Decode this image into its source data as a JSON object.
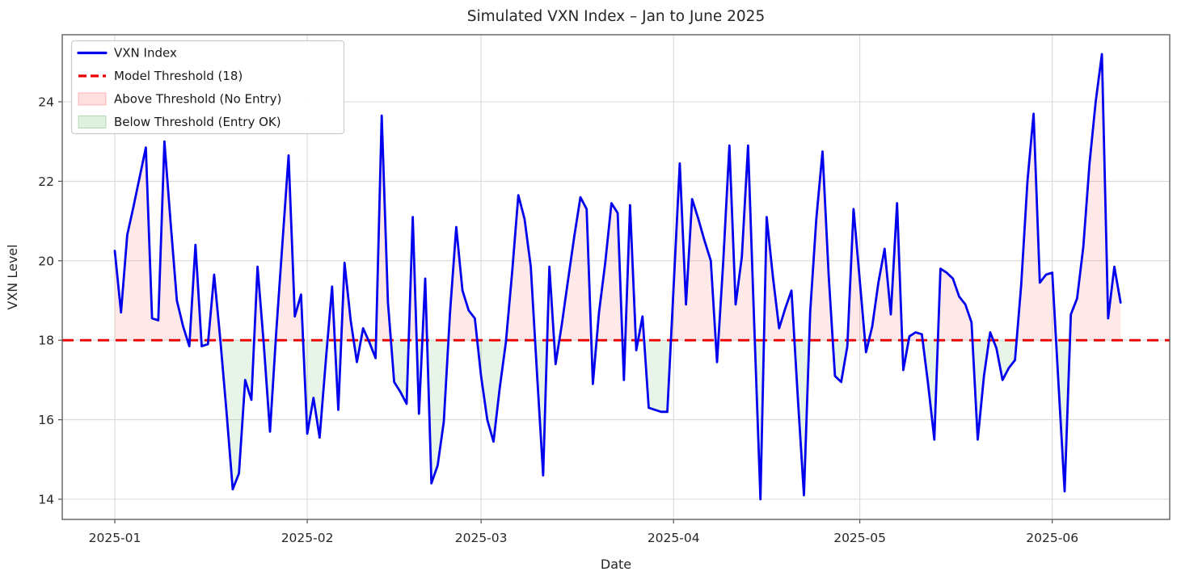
{
  "chart_data": {
    "type": "line",
    "title": "Simulated VXN Index – Jan to June 2025",
    "xlabel": "Date",
    "ylabel": "VXN Level",
    "threshold": 18,
    "ylim": [
      13.49,
      25.76
    ],
    "grid": true,
    "legend_position": "upper-left",
    "legend": [
      {
        "label": "VXN Index",
        "type": "line",
        "color": "#0000ee"
      },
      {
        "label": "Model Threshold (18)",
        "type": "dashed-line",
        "color": "#ee0000"
      },
      {
        "label": "Above Threshold (No Entry)",
        "type": "patch",
        "color": "#ff0000"
      },
      {
        "label": "Below Threshold (Entry OK)",
        "type": "patch",
        "color": "#008000"
      }
    ],
    "y_ticks": [
      14,
      16,
      18,
      20,
      22,
      24
    ],
    "x_ticks": [
      {
        "label": "2025-01",
        "date": "2025-01-01"
      },
      {
        "label": "2025-02",
        "date": "2025-02-01"
      },
      {
        "label": "2025-03",
        "date": "2025-03-01"
      },
      {
        "label": "2025-04",
        "date": "2025-04-01"
      },
      {
        "label": "2025-05",
        "date": "2025-05-01"
      },
      {
        "label": "2025-06",
        "date": "2025-06-01"
      }
    ],
    "series_name": "VXN Index",
    "dates": [
      "2025-01-01",
      "2025-01-02",
      "2025-01-03",
      "2025-01-04",
      "2025-01-05",
      "2025-01-06",
      "2025-01-07",
      "2025-01-08",
      "2025-01-09",
      "2025-01-10",
      "2025-01-11",
      "2025-01-12",
      "2025-01-13",
      "2025-01-14",
      "2025-01-15",
      "2025-01-16",
      "2025-01-17",
      "2025-01-18",
      "2025-01-19",
      "2025-01-20",
      "2025-01-21",
      "2025-01-22",
      "2025-01-23",
      "2025-01-24",
      "2025-01-25",
      "2025-01-26",
      "2025-01-27",
      "2025-01-28",
      "2025-01-29",
      "2025-01-30",
      "2025-01-31",
      "2025-02-01",
      "2025-02-02",
      "2025-02-03",
      "2025-02-04",
      "2025-02-05",
      "2025-02-06",
      "2025-02-07",
      "2025-02-08",
      "2025-02-09",
      "2025-02-10",
      "2025-02-11",
      "2025-02-12",
      "2025-02-13",
      "2025-02-14",
      "2025-02-15",
      "2025-02-16",
      "2025-02-17",
      "2025-02-18",
      "2025-02-19",
      "2025-02-20",
      "2025-02-21",
      "2025-02-22",
      "2025-02-23",
      "2025-02-24",
      "2025-02-25",
      "2025-02-26",
      "2025-02-27",
      "2025-02-28",
      "2025-03-01",
      "2025-03-02",
      "2025-03-03",
      "2025-03-04",
      "2025-03-05",
      "2025-03-06",
      "2025-03-07",
      "2025-03-08",
      "2025-03-09",
      "2025-03-10",
      "2025-03-11",
      "2025-03-12",
      "2025-03-13",
      "2025-03-14",
      "2025-03-15",
      "2025-03-16",
      "2025-03-17",
      "2025-03-18",
      "2025-03-19",
      "2025-03-20",
      "2025-03-21",
      "2025-03-22",
      "2025-03-23",
      "2025-03-24",
      "2025-03-25",
      "2025-03-26",
      "2025-03-27",
      "2025-03-28",
      "2025-03-29",
      "2025-03-30",
      "2025-03-31",
      "2025-04-01",
      "2025-04-02",
      "2025-04-03",
      "2025-04-04",
      "2025-04-05",
      "2025-04-06",
      "2025-04-07",
      "2025-04-08",
      "2025-04-09",
      "2025-04-10",
      "2025-04-11",
      "2025-04-12",
      "2025-04-13",
      "2025-04-14",
      "2025-04-15",
      "2025-04-16",
      "2025-04-17",
      "2025-04-18",
      "2025-04-19",
      "2025-04-20",
      "2025-04-21",
      "2025-04-22",
      "2025-04-23",
      "2025-04-24",
      "2025-04-25",
      "2025-04-26",
      "2025-04-27",
      "2025-04-28",
      "2025-04-29",
      "2025-04-30",
      "2025-05-01",
      "2025-05-02",
      "2025-05-03",
      "2025-05-04",
      "2025-05-05",
      "2025-05-06",
      "2025-05-07",
      "2025-05-08",
      "2025-05-09",
      "2025-05-10",
      "2025-05-11",
      "2025-05-12",
      "2025-05-13",
      "2025-05-14",
      "2025-05-15",
      "2025-05-16",
      "2025-05-17",
      "2025-05-18",
      "2025-05-19",
      "2025-05-20",
      "2025-05-21",
      "2025-05-22",
      "2025-05-23",
      "2025-05-24",
      "2025-05-25",
      "2025-05-26",
      "2025-05-27",
      "2025-05-28",
      "2025-05-29",
      "2025-05-30",
      "2025-05-31",
      "2025-06-01",
      "2025-06-02",
      "2025-06-03",
      "2025-06-04",
      "2025-06-05",
      "2025-06-06",
      "2025-06-07",
      "2025-06-08",
      "2025-06-09",
      "2025-06-10",
      "2025-06-11",
      "2025-06-12"
    ],
    "values": [
      20.25,
      18.7,
      20.65,
      21.35,
      22.1,
      22.85,
      18.55,
      18.5,
      23.0,
      20.95,
      19.0,
      18.35,
      17.85,
      20.4,
      17.85,
      17.9,
      19.65,
      18.0,
      16.2,
      14.25,
      14.65,
      17.0,
      16.5,
      19.85,
      17.9,
      15.7,
      18.2,
      20.45,
      22.65,
      18.6,
      19.15,
      15.65,
      16.55,
      15.55,
      17.5,
      19.35,
      16.25,
      19.95,
      18.5,
      17.45,
      18.3,
      17.95,
      17.55,
      23.65,
      18.95,
      16.95,
      16.7,
      16.4,
      21.1,
      16.15,
      19.55,
      14.4,
      14.85,
      15.95,
      18.7,
      20.85,
      19.25,
      18.75,
      18.55,
      17.1,
      16.0,
      15.45,
      16.8,
      17.95,
      19.7,
      21.65,
      21.05,
      19.85,
      17.2,
      14.6,
      19.85,
      17.4,
      18.4,
      19.5,
      20.6,
      21.6,
      21.3,
      16.9,
      18.7,
      19.95,
      21.45,
      21.2,
      17.0,
      21.4,
      17.75,
      18.6,
      16.3,
      16.25,
      16.2,
      16.2,
      19.3,
      22.45,
      18.9,
      21.55,
      21.05,
      20.5,
      20.0,
      17.45,
      19.95,
      22.9,
      18.9,
      20.1,
      22.9,
      18.4,
      14.0,
      21.1,
      19.6,
      18.3,
      18.8,
      19.25,
      16.6,
      14.1,
      18.7,
      21.05,
      22.75,
      19.6,
      17.1,
      16.95,
      17.85,
      21.3,
      19.5,
      17.7,
      18.35,
      19.45,
      20.3,
      18.65,
      21.45,
      17.25,
      18.1,
      18.2,
      18.15,
      16.9,
      15.5,
      19.8,
      19.7,
      19.55,
      19.1,
      18.9,
      18.45,
      15.5,
      17.1,
      18.2,
      17.8,
      17.0,
      17.3,
      17.5,
      19.4,
      22.0,
      23.7,
      19.45,
      19.65,
      19.7,
      16.9,
      14.2,
      18.65,
      19.05,
      20.35,
      22.45,
      24.0,
      25.2,
      18.55,
      19.85,
      18.95
    ],
    "colors": {
      "line": "#0000ee",
      "threshold": "#ee0000",
      "above_fill": "#ff0000",
      "below_fill": "#008000",
      "fill_opacity": 0.09,
      "grid": "#d9d9d9",
      "spine": "#555555",
      "text": "#262626"
    }
  }
}
